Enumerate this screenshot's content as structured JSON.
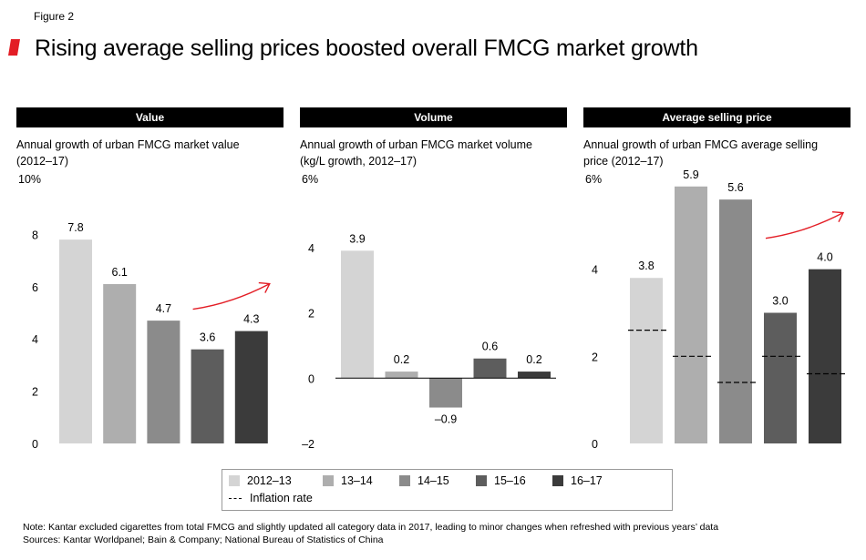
{
  "figure_label": "Figure 2",
  "title": "Rising average selling prices boosted overall FMCG market growth",
  "colors": {
    "title_accent": "#e31d25",
    "arrow": "#e31d25",
    "series": [
      "#d4d4d4",
      "#aeaeae",
      "#8b8b8b",
      "#5d5d5d",
      "#3b3b3b"
    ]
  },
  "legend": {
    "series": [
      "2012–13",
      "13–14",
      "14–15",
      "15–16",
      "16–17"
    ],
    "inflation_label": "Inflation rate"
  },
  "notes": {
    "note": "Note: Kantar excluded cigarettes from total FMCG and slightly updated all category data in 2017, leading to minor changes when refreshed with previous years’ data",
    "sources": "Sources: Kantar Worldpanel; Bain & Company; National Bureau of Statistics of China"
  },
  "panels": [
    {
      "header": "Value",
      "subtitle_line1": "Annual growth of urban FMCG market value",
      "subtitle_line2": "(2012–17)",
      "unit": "10%"
    },
    {
      "header": "Volume",
      "subtitle_line1": "Annual growth of urban FMCG market volume",
      "subtitle_line2": "(kg/L growth, 2012–17)",
      "unit": "6%"
    },
    {
      "header": "Average selling price",
      "subtitle_line1": "Annual growth of urban FMCG average selling",
      "subtitle_line2": "price (2012–17)",
      "unit": "6%"
    }
  ],
  "chart_data": [
    {
      "type": "bar",
      "title": "Value",
      "categories": [
        "2012–13",
        "13–14",
        "14–15",
        "15–16",
        "16–17"
      ],
      "values": [
        7.8,
        6.1,
        4.7,
        3.6,
        4.3
      ],
      "value_labels": [
        "7.8",
        "6.1",
        "4.7",
        "3.6",
        "4.3"
      ],
      "ylim": [
        0,
        10
      ],
      "yticks": [
        0,
        2,
        4,
        6,
        8
      ],
      "ytick_labels": [
        "0",
        "2",
        "4",
        "6",
        "8"
      ]
    },
    {
      "type": "bar",
      "title": "Volume",
      "categories": [
        "2012–13",
        "13–14",
        "14–15",
        "15–16",
        "16–17"
      ],
      "values": [
        3.9,
        0.2,
        -0.9,
        0.6,
        0.2
      ],
      "value_labels": [
        "3.9",
        "0.2",
        "–0.9",
        "0.6",
        "0.2"
      ],
      "ylim": [
        -2,
        6
      ],
      "yticks": [
        -2,
        0,
        2,
        4
      ],
      "ytick_labels": [
        "–2",
        "0",
        "2",
        "4"
      ]
    },
    {
      "type": "bar",
      "title": "Average selling price",
      "categories": [
        "2012–13",
        "13–14",
        "14–15",
        "15–16",
        "16–17"
      ],
      "values": [
        3.8,
        5.9,
        5.6,
        3.0,
        4.0
      ],
      "value_labels": [
        "3.8",
        "5.9",
        "5.6",
        "3.0",
        "4.0"
      ],
      "inflation_rate": [
        2.6,
        2.0,
        1.4,
        2.0,
        1.6
      ],
      "ylim": [
        0,
        6
      ],
      "yticks": [
        0,
        2,
        4
      ],
      "ytick_labels": [
        "0",
        "2",
        "4"
      ]
    }
  ]
}
